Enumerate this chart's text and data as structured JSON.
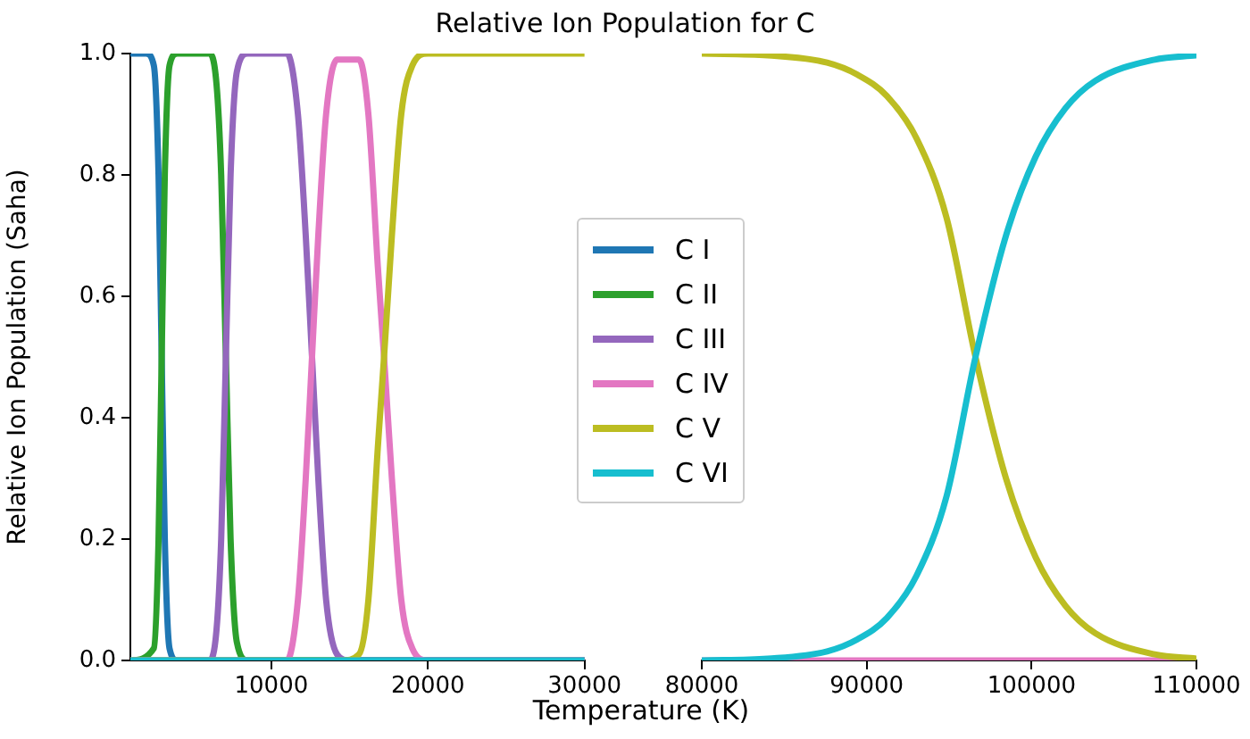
{
  "chart_data": [
    {
      "type": "line",
      "title": "Relative Ion Population for C",
      "xlabel": "Temperature (K)",
      "ylabel": "Relative Ion Population (Saha)",
      "legend": "right",
      "marker": "none",
      "line_style": "solid",
      "xlim": [
        1000,
        30000
      ],
      "xticks": [
        10000,
        20000,
        30000
      ],
      "ylim": [
        0,
        1
      ],
      "yticks": [
        {
          "value": 0,
          "label": "0.0"
        },
        {
          "value": 0.2,
          "label": "0.2"
        },
        {
          "value": 0.4,
          "label": "0.4"
        },
        {
          "value": 0.6,
          "label": "0.6"
        },
        {
          "value": 0.8,
          "label": "0.8"
        },
        {
          "value": 1,
          "label": "1.0"
        }
      ],
      "series": [
        {
          "name": "C I",
          "color": "#1f77b4",
          "x": [
            1000,
            2000,
            2500,
            2800,
            3000,
            3200,
            3500,
            4000,
            30000
          ],
          "values": [
            1,
            1,
            0.98,
            0.8,
            0.5,
            0.2,
            0.02,
            0,
            0
          ]
        },
        {
          "name": "C II",
          "color": "#2ca02c",
          "x": [
            1000,
            2500,
            2800,
            3000,
            3200,
            3500,
            4000,
            6000,
            6500,
            6800,
            7100,
            7400,
            7800,
            8500,
            30000
          ],
          "values": [
            0,
            0.02,
            0.2,
            0.5,
            0.8,
            0.98,
            1,
            1,
            0.95,
            0.8,
            0.5,
            0.2,
            0.03,
            0,
            0
          ]
        },
        {
          "name": "C III",
          "color": "#9467bd",
          "x": [
            1000,
            6000,
            6500,
            6800,
            7100,
            7400,
            7800,
            8500,
            11000,
            11700,
            12200,
            12600,
            13000,
            13500,
            14200,
            15000,
            30000
          ],
          "values": [
            0,
            0,
            0.05,
            0.2,
            0.5,
            0.8,
            0.97,
            1,
            1,
            0.9,
            0.7,
            0.5,
            0.3,
            0.1,
            0.01,
            0,
            0
          ]
        },
        {
          "name": "C IV",
          "color": "#e377c2",
          "x": [
            1000,
            11000,
            11700,
            12200,
            12600,
            13000,
            13500,
            14200,
            15600,
            16200,
            16800,
            17200,
            17700,
            18300,
            19000,
            20000,
            30000
          ],
          "values": [
            0,
            0,
            0.1,
            0.3,
            0.5,
            0.7,
            0.9,
            0.99,
            0.99,
            0.9,
            0.65,
            0.5,
            0.3,
            0.1,
            0.02,
            0,
            0
          ]
        },
        {
          "name": "C V",
          "color": "#bcbd22",
          "x": [
            1000,
            14500,
            15600,
            16200,
            16800,
            17200,
            17700,
            18300,
            19000,
            20000,
            22000,
            30000
          ],
          "values": [
            0,
            0,
            0.01,
            0.1,
            0.35,
            0.5,
            0.7,
            0.9,
            0.98,
            1,
            1,
            1
          ]
        },
        {
          "name": "C VI",
          "color": "#17becf",
          "x": [
            1000,
            30000
          ],
          "values": [
            0,
            0
          ]
        }
      ]
    },
    {
      "type": "line",
      "tick_labels": "x",
      "marker": "none",
      "line_style": "solid",
      "xlim": [
        80000,
        110000
      ],
      "xticks": [
        80000,
        90000,
        100000,
        110000
      ],
      "ylim": [
        0,
        1
      ],
      "series": [
        {
          "color": "#e377c2",
          "x": [
            80000,
            110000
          ],
          "values": [
            0,
            0
          ]
        },
        {
          "color": "#bcbd22",
          "x": [
            80000,
            84000,
            87600,
            89450,
            91230,
            93030,
            94840,
            96600,
            98450,
            100250,
            102060,
            103860,
            107470,
            110000
          ],
          "values": [
            1,
            0.997,
            0.985,
            0.965,
            0.93,
            0.86,
            0.73,
            0.5,
            0.3,
            0.17,
            0.09,
            0.045,
            0.01,
            0.003
          ]
        },
        {
          "color": "#17becf",
          "x": [
            80000,
            84000,
            87600,
            89450,
            91230,
            93030,
            94840,
            96600,
            98450,
            100250,
            102060,
            103860,
            107470,
            110000
          ],
          "values": [
            0,
            0.003,
            0.015,
            0.035,
            0.07,
            0.14,
            0.27,
            0.5,
            0.7,
            0.83,
            0.91,
            0.955,
            0.99,
            0.997
          ]
        }
      ]
    }
  ]
}
